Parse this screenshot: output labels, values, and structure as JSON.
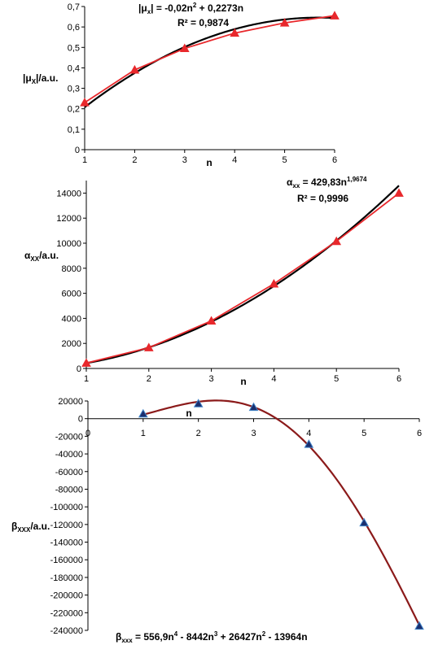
{
  "chart_data": [
    {
      "type": "line",
      "ylabel_parts": [
        "|μ",
        "X",
        "|/a.u."
      ],
      "xlabel": "n",
      "equation_parts": [
        "|μ",
        "x",
        "| = -0,02n",
        "2",
        " + 0,2273n"
      ],
      "r2": "R² = 0,9874",
      "xlim": [
        1,
        6
      ],
      "ylim": [
        0,
        0.7
      ],
      "xticks": [
        "1",
        "2",
        "3",
        "4",
        "5",
        "6"
      ],
      "yticks": [
        "0",
        "0,1",
        "0,2",
        "0,3",
        "0,4",
        "0,5",
        "0,6",
        "0,7"
      ],
      "x": [
        1,
        2,
        3,
        4,
        5,
        6
      ],
      "series": [
        {
          "values": [
            0.23,
            0.39,
            0.495,
            0.57,
            0.62,
            0.655
          ],
          "color": "#e8282c",
          "marker": "triangle"
        }
      ],
      "trendline": {
        "kind": "poly2",
        "a": -0.02,
        "b": 0.2273,
        "c": 0,
        "color": "#000000"
      }
    },
    {
      "type": "line",
      "ylabel_parts": [
        "α",
        "XX",
        "/a.u."
      ],
      "xlabel": "n",
      "equation_parts": [
        "α",
        "xx",
        " = 429,83n",
        "1,9674"
      ],
      "r2": "R² = 0,9996",
      "xlim": [
        1,
        6
      ],
      "ylim": [
        0,
        15000
      ],
      "xticks": [
        "1",
        "2",
        "3",
        "4",
        "5",
        "6"
      ],
      "yticks": [
        "0",
        "2000",
        "4000",
        "6000",
        "8000",
        "10000",
        "12000",
        "14000"
      ],
      "x": [
        1,
        2,
        3,
        4,
        5,
        6
      ],
      "series": [
        {
          "values": [
            430,
            1660,
            3800,
            6750,
            10150,
            14000
          ],
          "color": "#e8282c",
          "marker": "triangle"
        }
      ],
      "trendline": {
        "kind": "power",
        "a": 429.83,
        "b": 1.9674,
        "color": "#000000"
      }
    },
    {
      "type": "line",
      "ylabel_parts": [
        "β",
        "XXX",
        "/a.u."
      ],
      "xlabel": "n",
      "equation_parts": [
        "β",
        "xxx",
        " = 556,9n",
        "4",
        " - 8442n",
        "3",
        " + 26427n",
        "2",
        " - 13964n"
      ],
      "xlim": [
        0,
        6
      ],
      "ylim": [
        -240000,
        20000
      ],
      "xticks": [
        "0",
        "1",
        "2",
        "3",
        "4",
        "5",
        "6"
      ],
      "yticks": [
        "20000",
        "0",
        "-20000",
        "-40000",
        "-60000",
        "-80000",
        "-100000",
        "-120000",
        "-140000",
        "-160000",
        "-180000",
        "-200000",
        "-220000",
        "-240000"
      ],
      "x": [
        1,
        2,
        3,
        4,
        5,
        6
      ],
      "series": [
        {
          "values": [
            5500,
            17000,
            13000,
            -29000,
            -118000,
            -235000
          ],
          "color": "#1b2f6e",
          "marker": "triangle"
        }
      ],
      "trendline": {
        "kind": "poly4",
        "coeffs": [
          556.9,
          -8442,
          26427,
          -13964,
          0
        ],
        "color": "#8b1a1a"
      }
    }
  ]
}
